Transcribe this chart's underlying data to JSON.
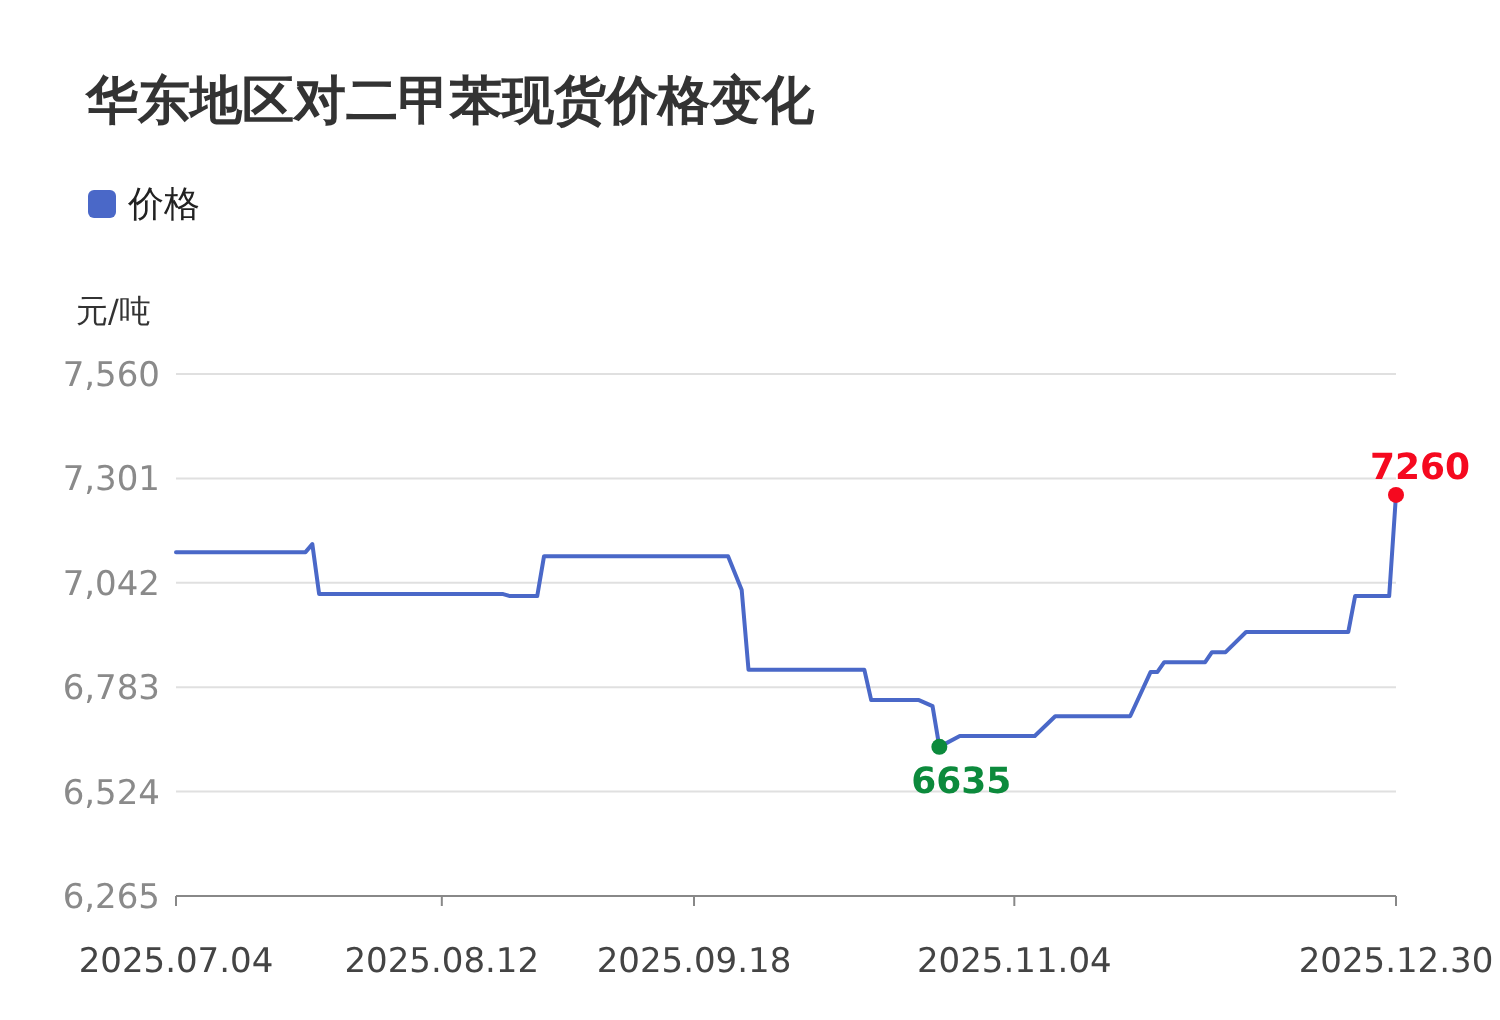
{
  "chart_data": {
    "type": "line",
    "title": "华东地区对二甲苯现货价格变化",
    "ylabel": "元/吨",
    "legend": "top left",
    "grid": "y",
    "marker": "none",
    "line_style": "solid",
    "x": [
      "2025-07-04",
      "2025-07-23",
      "2025-07-24",
      "2025-07-25",
      "2025-08-21",
      "2025-08-22",
      "2025-08-26",
      "2025-08-27",
      "2025-09-23",
      "2025-09-25",
      "2025-09-26",
      "2025-10-13",
      "2025-10-14",
      "2025-10-21",
      "2025-10-23",
      "2025-10-24",
      "2025-10-27",
      "2025-11-07",
      "2025-11-10",
      "2025-11-21",
      "2025-11-24",
      "2025-11-25",
      "2025-11-26",
      "2025-12-02",
      "2025-12-03",
      "2025-12-05",
      "2025-12-08",
      "2025-12-23",
      "2025-12-24",
      "2025-12-29",
      "2025-12-30"
    ],
    "series": [
      {
        "name": "价格",
        "color": "#4a68c8",
        "values": [
          7118,
          7118,
          7138,
          7014,
          7014,
          7009,
          7009,
          7108,
          7108,
          7024,
          6826,
          6826,
          6751,
          6751,
          6736,
          6635,
          6662,
          6662,
          6711,
          6711,
          6821,
          6821,
          6845,
          6845,
          6870,
          6870,
          6920,
          6920,
          7009,
          7009,
          7260
        ]
      }
    ],
    "annotations": [
      {
        "text": "6635",
        "x": "2025-10-24",
        "y": 6635
      },
      {
        "text": "7260",
        "x": "2025-12-30",
        "y": 7260
      }
    ],
    "ylim": [
      6265,
      7560
    ],
    "yticks": [
      {
        "value": 6265,
        "label": "6,265"
      },
      {
        "value": 6524,
        "label": "6,524"
      },
      {
        "value": 6783,
        "label": "6,783"
      },
      {
        "value": 7042,
        "label": "7,042"
      },
      {
        "value": 7301,
        "label": "7,301"
      },
      {
        "value": 7560,
        "label": "7,560"
      }
    ],
    "xlim": [
      "2025-07-04",
      "2025-12-30"
    ],
    "xticks": [
      {
        "value": "2025-07-04",
        "label": "2025.07.04"
      },
      {
        "value": "2025-08-12",
        "label": "2025.08.12"
      },
      {
        "value": "2025-09-18",
        "label": "2025.09.18"
      },
      {
        "value": "2025-11-04",
        "label": "2025.11.04"
      },
      {
        "value": "2025-12-30",
        "label": "2025.12.30"
      }
    ]
  }
}
